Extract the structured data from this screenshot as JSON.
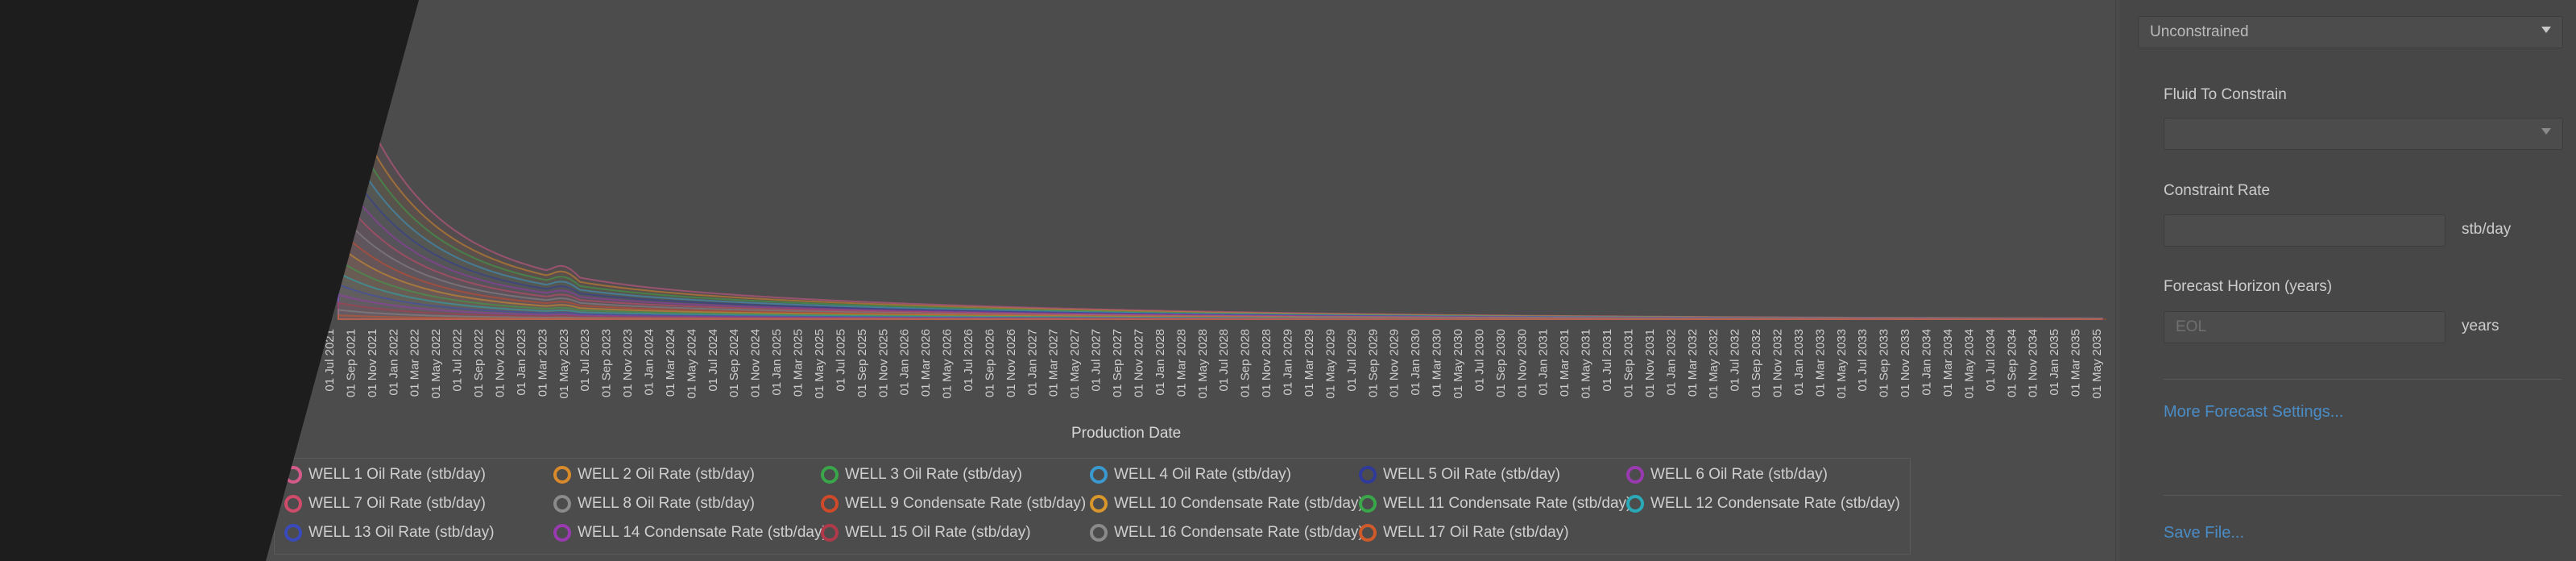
{
  "chart_data": {
    "type": "area",
    "xlabel": "Production Date",
    "ylabel": "",
    "x_ticks": [
      "01 Jul 2021",
      "01 Sep 2021",
      "01 Nov 2021",
      "01 Jan 2022",
      "01 Mar 2022",
      "01 May 2022",
      "01 Jul 2022",
      "01 Sep 2022",
      "01 Nov 2022",
      "01 Jan 2023",
      "01 Mar 2023",
      "01 May 2023",
      "01 Jul 2023",
      "01 Sep 2023",
      "01 Nov 2023",
      "01 Jan 2024",
      "01 Mar 2024",
      "01 May 2024",
      "01 Jul 2024",
      "01 Sep 2024",
      "01 Nov 2024",
      "01 Jan 2025",
      "01 Mar 2025",
      "01 May 2025",
      "01 Jul 2025",
      "01 Sep 2025",
      "01 Nov 2025",
      "01 Jan 2026",
      "01 Mar 2026",
      "01 May 2026",
      "01 Jul 2026",
      "01 Sep 2026",
      "01 Nov 2026",
      "01 Jan 2027",
      "01 Mar 2027",
      "01 May 2027",
      "01 Jul 2027",
      "01 Sep 2027",
      "01 Nov 2027",
      "01 Jan 2028",
      "01 Mar 2028",
      "01 May 2028",
      "01 Jul 2028",
      "01 Sep 2028",
      "01 Nov 2028",
      "01 Jan 2029",
      "01 Mar 2029",
      "01 May 2029",
      "01 Jul 2029",
      "01 Sep 2029",
      "01 Nov 2029",
      "01 Jan 2030",
      "01 Mar 2030",
      "01 May 2030",
      "01 Jul 2030",
      "01 Sep 2030",
      "01 Nov 2030",
      "01 Jan 2031",
      "01 Mar 2031",
      "01 May 2031",
      "01 Jul 2031",
      "01 Sep 2031",
      "01 Nov 2031",
      "01 Jan 2032",
      "01 Mar 2032",
      "01 May 2032",
      "01 Jul 2032",
      "01 Sep 2032",
      "01 Nov 2032",
      "01 Jan 2033",
      "01 Mar 2033",
      "01 May 2033",
      "01 Jul 2033",
      "01 Sep 2033",
      "01 Nov 2033",
      "01 Jan 2034",
      "01 Mar 2034",
      "01 May 2034",
      "01 Jul 2034",
      "01 Sep 2034",
      "01 Nov 2034",
      "01 Jan 2035",
      "01 Mar 2035",
      "01 May 2035"
    ],
    "legend_placement": "bottom",
    "grid": false,
    "stacked": true,
    "series": [
      {
        "name": "WELL 1 Oil Rate (stb/day)",
        "color": "#d45a8a"
      },
      {
        "name": "WELL 2 Oil Rate (stb/day)",
        "color": "#d98a2a"
      },
      {
        "name": "WELL 3 Oil Rate (stb/day)",
        "color": "#3aa64a"
      },
      {
        "name": "WELL 4 Oil Rate (stb/day)",
        "color": "#3a9ad0"
      },
      {
        "name": "WELL 5 Oil Rate (stb/day)",
        "color": "#2f3a9a"
      },
      {
        "name": "WELL 6 Oil Rate (stb/day)",
        "color": "#9a3ab0"
      },
      {
        "name": "WELL 7 Oil Rate (stb/day)",
        "color": "#d04a6a"
      },
      {
        "name": "WELL 8 Oil Rate (stb/day)",
        "color": "#8a8a8a"
      },
      {
        "name": "WELL 9 Condensate Rate (stb/day)",
        "color": "#d04a2a"
      },
      {
        "name": "WELL 10 Condensate Rate (stb/day)",
        "color": "#d9962a"
      },
      {
        "name": "WELL 11 Condensate Rate (stb/day)",
        "color": "#3aa64a"
      },
      {
        "name": "WELL 12 Condensate Rate (stb/day)",
        "color": "#2aaab8"
      },
      {
        "name": "WELL 13 Oil Rate (stb/day)",
        "color": "#3a4aba"
      },
      {
        "name": "WELL 14 Condensate Rate (stb/day)",
        "color": "#9a3ab0"
      },
      {
        "name": "WELL 15 Oil Rate (stb/day)",
        "color": "#b03a4a"
      },
      {
        "name": "WELL 16 Condensate Rate (stb/day)",
        "color": "#8a8a8a"
      },
      {
        "name": "WELL 17 Oil Rate (stb/day)",
        "color": "#d05a2a"
      }
    ]
  },
  "panel": {
    "constraint_type_value": "Unconstrained",
    "fluid_to_constrain_label": "Fluid To Constrain",
    "fluid_to_constrain_value": "",
    "constraint_rate_label": "Constraint Rate",
    "constraint_rate_value": "",
    "constraint_rate_unit": "stb/day",
    "forecast_horizon_label": "Forecast Horizon (years)",
    "forecast_horizon_placeholder": "EOL",
    "forecast_horizon_unit": "years",
    "more_settings_link": "More Forecast Settings...",
    "save_file_link": "Save File..."
  }
}
